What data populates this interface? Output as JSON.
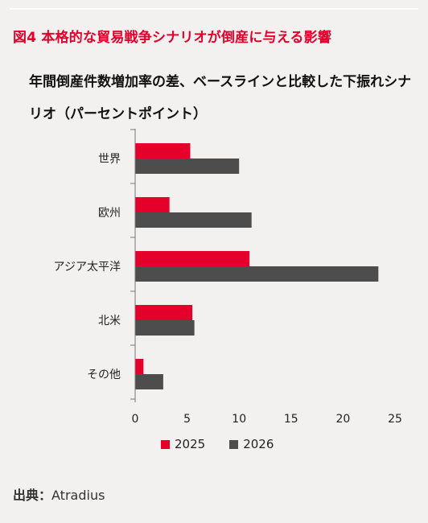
{
  "figure": {
    "title": "図4 本格的な貿易戦争シナリオが倒産に与える影響",
    "subtitle": "年間倒産件数増加率の差、ベースラインと比較した下振れシナリオ（パーセントポイント）"
  },
  "source": {
    "label": "出典：",
    "value": "Atradius"
  },
  "colors": {
    "series_2025": "#e4002b",
    "series_2026": "#4d4d4d",
    "title": "#e4002b"
  },
  "chart_data": {
    "type": "bar",
    "orientation": "horizontal",
    "categories": [
      "世界",
      "欧州",
      "アジア太平洋",
      "北米",
      "その他"
    ],
    "series": [
      {
        "name": "2025",
        "values": [
          5.3,
          3.3,
          11.0,
          5.5,
          0.8
        ]
      },
      {
        "name": "2026",
        "values": [
          10.0,
          11.2,
          23.4,
          5.7,
          2.7
        ]
      }
    ],
    "xlim": [
      0,
      25
    ],
    "xticks": [
      0,
      5,
      10,
      15,
      20,
      25
    ],
    "grid": false,
    "legend_position": "bottom"
  }
}
